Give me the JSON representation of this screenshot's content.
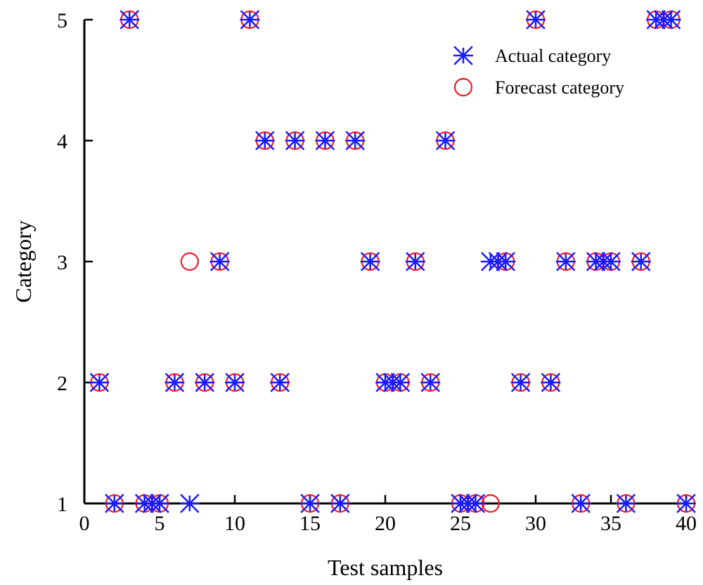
{
  "chart_data": {
    "type": "scatter",
    "title": "",
    "xlabel": "Test samples",
    "ylabel": "Category",
    "xlim": [
      0,
      40
    ],
    "ylim": [
      1,
      5
    ],
    "xticks": [
      0,
      5,
      10,
      15,
      20,
      25,
      30,
      35,
      40
    ],
    "yticks": [
      1,
      2,
      3,
      4,
      5
    ],
    "grid": false,
    "legend_position": "top-right",
    "series": [
      {
        "name": "Actual category",
        "marker": "asterisk",
        "color": "#1a1aff",
        "x": [
          1,
          2,
          3,
          4,
          4.5,
          5,
          6,
          7,
          8,
          9,
          10,
          11,
          12,
          13,
          14,
          15,
          16,
          17,
          18,
          19,
          20,
          20.5,
          21,
          22,
          23,
          24,
          25,
          25.5,
          26,
          27,
          27.5,
          28,
          29,
          30,
          31,
          32,
          33,
          34,
          34.5,
          35,
          36,
          37,
          38,
          38.5,
          39,
          40
        ],
        "y": [
          2,
          1,
          5,
          1,
          1,
          1,
          2,
          1,
          2,
          3,
          2,
          5,
          4,
          2,
          4,
          1,
          4,
          1,
          4,
          3,
          2,
          2,
          2,
          3,
          2,
          4,
          1,
          1,
          1,
          3,
          3,
          3,
          2,
          5,
          2,
          3,
          1,
          3,
          3,
          3,
          1,
          3,
          5,
          5,
          5,
          1
        ]
      },
      {
        "name": "Forecast category",
        "marker": "circle",
        "color": "#ee1c25",
        "x": [
          1,
          2,
          3,
          4,
          5,
          6,
          7,
          8,
          9,
          10,
          11,
          12,
          13,
          14,
          15,
          16,
          17,
          18,
          19,
          20,
          21,
          22,
          23,
          24,
          25,
          26,
          27,
          28,
          29,
          30,
          31,
          32,
          33,
          34,
          35,
          36,
          37,
          38,
          39,
          40
        ],
        "y": [
          2,
          1,
          5,
          1,
          1,
          2,
          3,
          2,
          3,
          2,
          5,
          4,
          2,
          4,
          1,
          4,
          1,
          4,
          3,
          2,
          2,
          3,
          2,
          4,
          1,
          1,
          1,
          3,
          2,
          5,
          2,
          3,
          1,
          3,
          3,
          1,
          3,
          5,
          5,
          1
        ]
      }
    ]
  }
}
